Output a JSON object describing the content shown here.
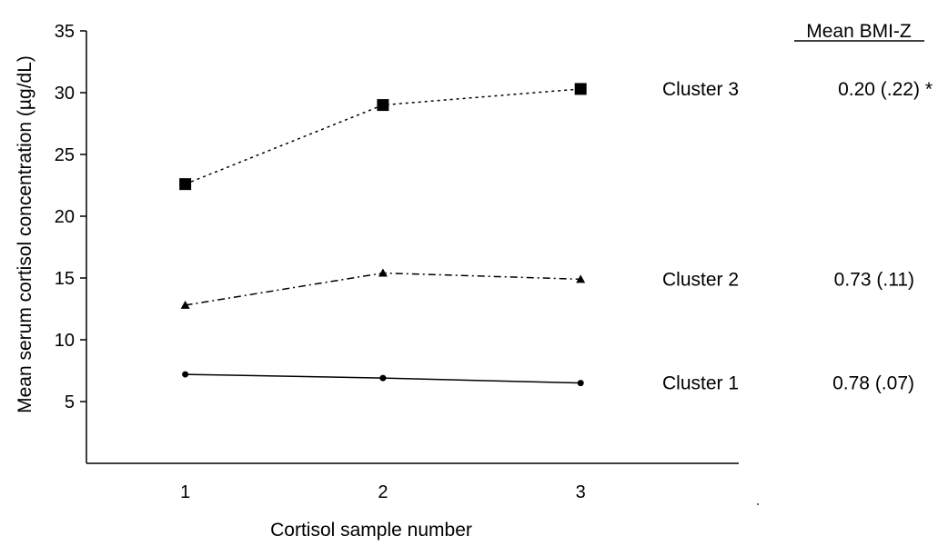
{
  "chart_data": {
    "type": "line",
    "title": "",
    "xlabel": "Cortisol sample number",
    "ylabel": "Mean serum cortisol concentration (µg/dL)",
    "x": [
      1,
      2,
      3
    ],
    "x_tick_labels": [
      "1",
      "2",
      "3"
    ],
    "xlim": [
      0.5,
      3.8
    ],
    "ylim": [
      0,
      35
    ],
    "y_ticks": [
      5,
      10,
      15,
      20,
      25,
      30,
      35
    ],
    "y_tick_labels": [
      "5",
      "10",
      "15",
      "20",
      "25",
      "30",
      "35"
    ],
    "grid": false,
    "legend_header": "Mean BMI-Z",
    "series": [
      {
        "name": "Cluster 3",
        "values": [
          22.6,
          29.0,
          30.3
        ],
        "marker": "square",
        "line_style": "dotted",
        "annotation": "0.20 (.22) *"
      },
      {
        "name": "Cluster 2",
        "values": [
          12.8,
          15.4,
          14.9
        ],
        "marker": "triangle",
        "line_style": "dash-dot",
        "annotation": "0.73 (.11)"
      },
      {
        "name": "Cluster 1",
        "values": [
          7.2,
          6.9,
          6.5
        ],
        "marker": "circle",
        "line_style": "solid",
        "annotation": "0.78 (.07)"
      }
    ],
    "colors": {
      "line": "#000000",
      "background": "#ffffff"
    }
  }
}
